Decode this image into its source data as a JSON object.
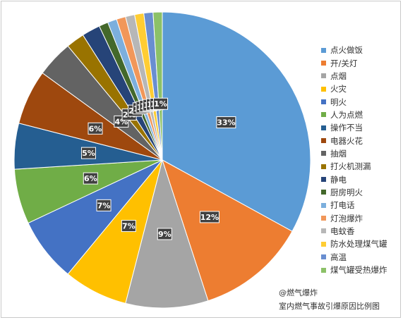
{
  "chart_data": {
    "type": "pie",
    "title": "",
    "categories": [
      "点火做饭",
      "开/关灯",
      "点烟",
      "火灾",
      "明火",
      "人为点燃",
      "操作不当",
      "电器火花",
      "抽烟",
      "打火机测漏",
      "静电",
      "厨房明火",
      "打电话",
      "灯泡爆炸",
      "电蚊香",
      "防水处理煤气罐",
      "高温",
      "煤气罐受热爆炸"
    ],
    "values": [
      33,
      12,
      9,
      7,
      7,
      6,
      5,
      6,
      4,
      2,
      2,
      1,
      1,
      1,
      1,
      1,
      1,
      1
    ],
    "labels": [
      "33%",
      "12%",
      "9%",
      "7%",
      "7%",
      "6%",
      "5%",
      "6%",
      "4%",
      "2%",
      "2%",
      "1%",
      "1%",
      "1%",
      "1%",
      "1%",
      "1%",
      "1%"
    ],
    "colors": [
      "#5b9bd5",
      "#ed7d31",
      "#a5a5a5",
      "#ffc000",
      "#4472c4",
      "#70ad47",
      "#255e91",
      "#9e480e",
      "#636363",
      "#997300",
      "#264478",
      "#43682b",
      "#7cafdd",
      "#f1975a",
      "#b7b7b7",
      "#ffcd33",
      "#698ed0",
      "#8cc168"
    ],
    "legend_position": "right"
  },
  "footer": {
    "watermark": "@燃气爆炸",
    "caption": "室内燃气事故引爆原因比例图"
  }
}
